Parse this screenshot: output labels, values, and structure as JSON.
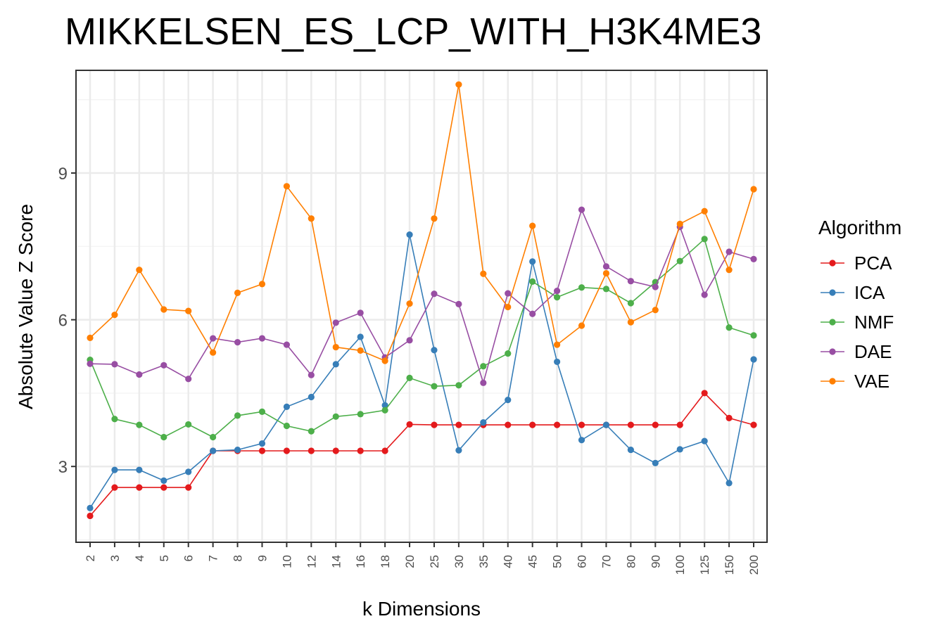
{
  "chart_data": {
    "type": "line",
    "title": "MIKKELSEN_ES_LCP_WITH_H3K4ME3",
    "xlabel": "k Dimensions",
    "ylabel": "Absolute Value Z Score",
    "categories": [
      "2",
      "3",
      "4",
      "5",
      "6",
      "7",
      "8",
      "9",
      "10",
      "12",
      "14",
      "16",
      "18",
      "20",
      "25",
      "30",
      "35",
      "40",
      "45",
      "50",
      "60",
      "70",
      "80",
      "90",
      "100",
      "125",
      "150",
      "200"
    ],
    "yticks": [
      3,
      6,
      9
    ],
    "ylim": [
      1.45,
      11.1
    ],
    "grid": true,
    "legend": {
      "title": "Algorithm",
      "position": "right"
    },
    "series": [
      {
        "name": "PCA",
        "color": "#e41a1c",
        "values": [
          1.99,
          2.57,
          2.57,
          2.57,
          2.57,
          3.32,
          3.32,
          3.32,
          3.32,
          3.32,
          3.32,
          3.32,
          3.32,
          3.86,
          3.85,
          3.85,
          3.85,
          3.85,
          3.85,
          3.85,
          3.85,
          3.85,
          3.85,
          3.85,
          3.85,
          4.5,
          3.99,
          3.85
        ]
      },
      {
        "name": "ICA",
        "color": "#377eb8",
        "values": [
          2.15,
          2.93,
          2.93,
          2.71,
          2.89,
          3.32,
          3.34,
          3.47,
          4.22,
          4.42,
          5.09,
          5.65,
          4.25,
          7.74,
          5.38,
          3.33,
          3.9,
          4.36,
          7.19,
          5.14,
          3.54,
          3.85,
          3.34,
          3.07,
          3.35,
          3.52,
          2.66,
          5.19
        ]
      },
      {
        "name": "NMF",
        "color": "#4daf4a",
        "values": [
          5.18,
          3.97,
          3.85,
          3.6,
          3.86,
          3.6,
          4.04,
          4.12,
          3.83,
          3.72,
          4.02,
          4.07,
          4.15,
          4.81,
          4.64,
          4.66,
          5.05,
          5.31,
          6.78,
          6.46,
          6.66,
          6.63,
          6.34,
          6.77,
          7.2,
          7.65,
          5.84,
          5.68
        ]
      },
      {
        "name": "DAE",
        "color": "#984ea3",
        "values": [
          5.1,
          5.09,
          4.88,
          5.07,
          4.79,
          5.62,
          5.54,
          5.62,
          5.49,
          4.87,
          5.94,
          6.14,
          5.23,
          5.58,
          6.53,
          6.32,
          4.71,
          6.54,
          6.12,
          6.59,
          8.25,
          7.09,
          6.79,
          6.67,
          7.9,
          6.51,
          7.39,
          7.24
        ]
      },
      {
        "name": "VAE",
        "color": "#ff7f00",
        "values": [
          5.63,
          6.1,
          7.02,
          6.21,
          6.18,
          5.33,
          6.55,
          6.73,
          8.73,
          8.07,
          5.44,
          5.37,
          5.16,
          6.33,
          8.07,
          10.81,
          6.94,
          6.26,
          7.92,
          5.49,
          5.88,
          6.95,
          5.95,
          6.2,
          7.96,
          8.22,
          7.02,
          8.67
        ]
      }
    ]
  }
}
